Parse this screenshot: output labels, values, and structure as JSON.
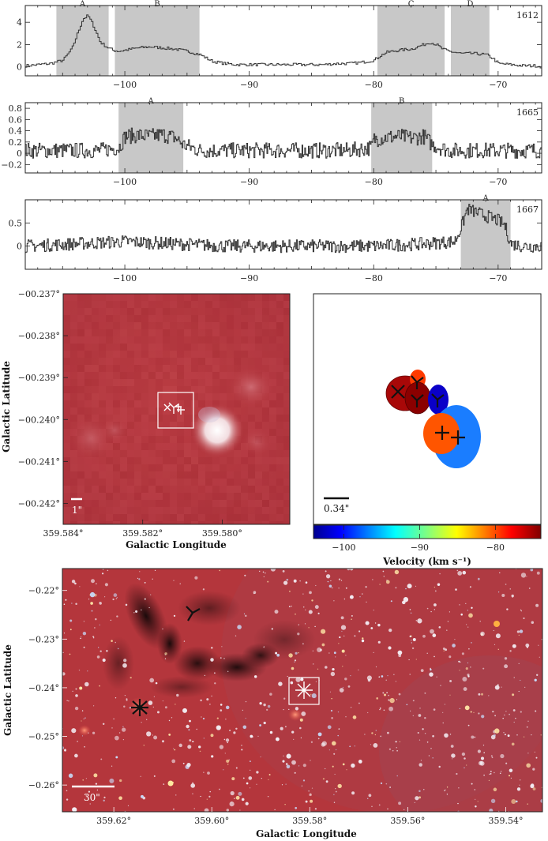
{
  "chart_data": [
    {
      "type": "line",
      "tag": "1612",
      "xlim": [
        -108,
        -66.5
      ],
      "ylim": [
        -0.8,
        5.5
      ],
      "xticks": [
        -100,
        -90,
        -80,
        -70
      ],
      "yticks": [
        0,
        2,
        4
      ],
      "shaded": [
        {
          "label": "A",
          "from": -105.5,
          "to": -101.3
        },
        {
          "label": "B",
          "from": -100.8,
          "to": -94.0
        },
        {
          "label": "C",
          "from": -79.7,
          "to": -74.3
        },
        {
          "label": "D",
          "from": -73.8,
          "to": -70.7
        }
      ],
      "x": [
        -108,
        -106,
        -105,
        -104.3,
        -103.8,
        -103.4,
        -103,
        -102.6,
        -102,
        -101.5,
        -101,
        -100.5,
        -100,
        -99,
        -98,
        -97,
        -96,
        -95,
        -94,
        -93,
        -92,
        -91,
        -90,
        -89,
        -88,
        -87,
        -86,
        -85,
        -84,
        -83,
        -82,
        -81,
        -80,
        -79.5,
        -79,
        -78,
        -77,
        -76,
        -75.5,
        -75,
        -74.5,
        -74,
        -73.5,
        -73,
        -72,
        -71,
        -70.5,
        -70,
        -69,
        -68,
        -67,
        -66.5
      ],
      "y": [
        0.1,
        0.3,
        0.6,
        1.6,
        3.1,
        4.3,
        4.6,
        3.8,
        2.2,
        1.8,
        1.5,
        1.4,
        1.5,
        1.7,
        1.8,
        1.7,
        1.6,
        1.4,
        1.1,
        0.5,
        0.3,
        0.2,
        0.2,
        0.2,
        0.2,
        0.2,
        0.2,
        0.2,
        0.2,
        0.3,
        0.3,
        0.4,
        0.6,
        1.0,
        1.3,
        1.5,
        1.6,
        2.0,
        2.2,
        2.0,
        1.6,
        1.4,
        1.3,
        1.2,
        1.2,
        1.1,
        0.8,
        0.3,
        0.2,
        0.1,
        0.1,
        0.0
      ]
    },
    {
      "type": "line",
      "tag": "1665",
      "xlim": [
        -108,
        -66.5
      ],
      "ylim": [
        -0.35,
        0.9
      ],
      "xticks": [
        -100,
        -90,
        -80,
        -70
      ],
      "yticks": [
        -0.2,
        0,
        0.2,
        0.4,
        0.6,
        0.8
      ],
      "shaded": [
        {
          "label": "A",
          "from": -100.5,
          "to": -95.3
        },
        {
          "label": "B",
          "from": -80.2,
          "to": -75.3
        }
      ],
      "x": [
        -108,
        -106,
        -104,
        -102,
        -100.5,
        -100,
        -99,
        -98,
        -97,
        -96,
        -95.3,
        -94,
        -92,
        -90,
        -88,
        -86,
        -84,
        -82,
        -80.2,
        -80,
        -79,
        -78,
        -77,
        -76,
        -75.3,
        -74,
        -72,
        -70,
        -68,
        -66.5
      ],
      "y": [
        0.05,
        0.05,
        0.05,
        0.05,
        0.1,
        0.3,
        0.32,
        0.3,
        0.33,
        0.28,
        0.15,
        0.05,
        0.05,
        0.05,
        0.05,
        0.05,
        0.05,
        0.05,
        0.1,
        0.25,
        0.28,
        0.3,
        0.27,
        0.3,
        0.15,
        0.05,
        0.05,
        0.05,
        0.05,
        0.05
      ],
      "noise": 0.14
    },
    {
      "type": "line",
      "tag": "1667",
      "xlim": [
        -108,
        -66.5
      ],
      "ylim": [
        -0.5,
        1.0
      ],
      "xticks": [
        -100,
        -90,
        -80,
        -70
      ],
      "yticks": [
        0,
        0.5
      ],
      "shaded": [
        {
          "label": "A",
          "from": -73.0,
          "to": -69.0
        }
      ],
      "x": [
        -108,
        -104,
        -100,
        -96,
        -92,
        -88,
        -84,
        -80,
        -76,
        -73.5,
        -73,
        -72.5,
        -72,
        -71,
        -70,
        -69.5,
        -69,
        -68,
        -66.5
      ],
      "y": [
        0.0,
        0.05,
        0.1,
        0.05,
        0.0,
        0.0,
        0.0,
        0.0,
        0.05,
        0.1,
        0.4,
        0.8,
        0.75,
        0.65,
        0.55,
        0.45,
        0.05,
        0.0,
        0.0
      ],
      "noise": 0.14
    },
    {
      "type": "image",
      "xlim": [
        359.584,
        359.5783
      ],
      "ylim": [
        -0.2425,
        -0.237
      ],
      "xticks": [
        359.584,
        359.582,
        359.58
      ],
      "xtick_labels": [
        "359.584°",
        "359.582°",
        "359.580°"
      ],
      "yticks": [
        -0.237,
        -0.238,
        -0.239,
        -0.24,
        -0.241,
        -0.242
      ],
      "ytick_labels": [
        "−00.237°",
        "−00.238°",
        "−00.239°",
        "−00.240°",
        "−00.241°",
        "−00.242°"
      ],
      "xlabel": "Galactic Longitude",
      "ylabel": "Galactic Latitude",
      "scalebar": "1\""
    },
    {
      "type": "scatter",
      "colorbar": {
        "vmin": -104,
        "vmax": -74,
        "ticks": [
          -100,
          -90,
          -80
        ],
        "label": "Velocity (km s⁻¹)"
      },
      "scalebar": "0.34\"",
      "spots": [
        {
          "velocity": -74,
          "marker": "x",
          "mx": 0.3,
          "my": 0.2
        },
        {
          "velocity": -74,
          "marker": "y",
          "mx": 0.32,
          "my": 0.1
        },
        {
          "velocity": -79,
          "marker": "y",
          "mx": 0.4,
          "my": 0.32
        },
        {
          "velocity": -104,
          "marker": "y",
          "mx": 0.5,
          "my": 0.32
        },
        {
          "velocity": -79,
          "marker": "plus",
          "mx": 0.5,
          "my": 0.75
        },
        {
          "velocity": -96,
          "marker": "plus",
          "mx": 0.6,
          "my": 0.82
        }
      ]
    },
    {
      "type": "image",
      "xlim": [
        359.6305,
        359.5325
      ],
      "ylim": [
        -0.2655,
        -0.2155
      ],
      "xticks": [
        359.62,
        359.6,
        359.58,
        359.56,
        359.54
      ],
      "xtick_labels": [
        "359.62°",
        "359.60°",
        "359.58°",
        "359.56°",
        "359.54°"
      ],
      "yticks": [
        -0.22,
        -0.23,
        -0.24,
        -0.25,
        -0.26
      ],
      "ytick_labels": [
        "−0.22°",
        "−0.23°",
        "−0.24°",
        "−0.25°",
        "−0.26°"
      ],
      "xlabel": "Galactic Longitude",
      "ylabel": "Galactic Latitude",
      "scalebar": "30\""
    }
  ]
}
